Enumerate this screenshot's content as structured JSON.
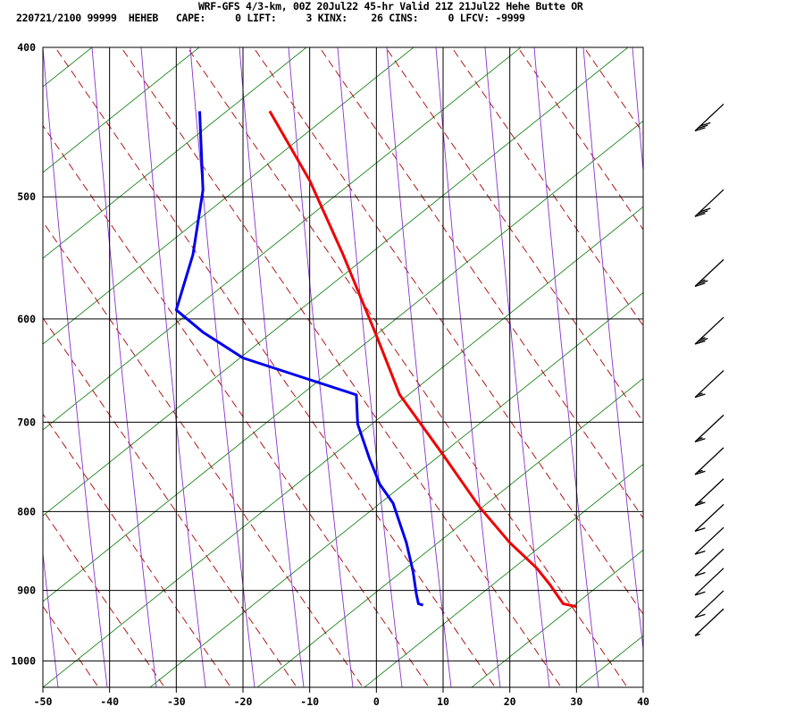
{
  "header": {
    "title": "WRF-GFS 4/3-km, 00Z 20Jul22 45-hr Valid 21Z 21Jul22 Hehe Butte OR",
    "subtitle": "220721/2100 99999  HEHEB   CAPE:     0 LIFT:     3 KINX:    26 CINS:     0 LFCV: -9999"
  },
  "colors": {
    "temperature": "#ee0000",
    "dewpoint": "#0000ee",
    "dry_adiabat": "#aa0000",
    "moist_adiabat": "#8833cc",
    "isotherm_skew": "#007700",
    "grid": "#000000"
  },
  "chart_data": {
    "type": "line",
    "title": "",
    "xlabel": "",
    "ylabel": "",
    "x_ticks": [
      "-50",
      "-40",
      "-30",
      "-20",
      "-10",
      "0",
      "10",
      "20",
      "30",
      "40"
    ],
    "y_ticks": [
      "400",
      "500",
      "600",
      "700",
      "800",
      "900",
      "1000"
    ],
    "xlim": [
      -50,
      40
    ],
    "ylim_pressure": [
      1040,
      400
    ],
    "grid": true,
    "series": [
      {
        "role": "temperature",
        "points": [
          [
            -16,
            440
          ],
          [
            -10,
            488
          ],
          [
            -5,
            545
          ],
          [
            0,
            615
          ],
          [
            3.5,
            672
          ],
          [
            10,
            735
          ],
          [
            15.5,
            795
          ],
          [
            20,
            838
          ],
          [
            24,
            870
          ],
          [
            26,
            892
          ],
          [
            28,
            918
          ],
          [
            30,
            922
          ]
        ]
      },
      {
        "role": "dewpoint",
        "points": [
          [
            -26.5,
            440
          ],
          [
            -26,
            495
          ],
          [
            -27.5,
            545
          ],
          [
            -30,
            592
          ],
          [
            -26,
            612
          ],
          [
            -20,
            636
          ],
          [
            -3,
            672
          ],
          [
            -2.8,
            702
          ],
          [
            -1,
            740
          ],
          [
            0.5,
            768
          ],
          [
            2.5,
            790
          ],
          [
            4.5,
            838
          ],
          [
            5.5,
            875
          ],
          [
            6,
            905
          ],
          [
            6.3,
            918
          ],
          [
            7,
            920
          ]
        ]
      }
    ],
    "wind_barbs": [
      {
        "pressure": 440,
        "knots": 30
      },
      {
        "pressure": 500,
        "knots": 30
      },
      {
        "pressure": 555,
        "knots": 25
      },
      {
        "pressure": 605,
        "knots": 25
      },
      {
        "pressure": 655,
        "knots": 15
      },
      {
        "pressure": 700,
        "knots": 15
      },
      {
        "pressure": 735,
        "knots": 15
      },
      {
        "pressure": 770,
        "knots": 15
      },
      {
        "pressure": 800,
        "knots": 10
      },
      {
        "pressure": 828,
        "knots": 10
      },
      {
        "pressure": 855,
        "knots": 10
      },
      {
        "pressure": 880,
        "knots": 10
      },
      {
        "pressure": 910,
        "knots": 10
      },
      {
        "pressure": 935,
        "knots": 5
      }
    ]
  }
}
